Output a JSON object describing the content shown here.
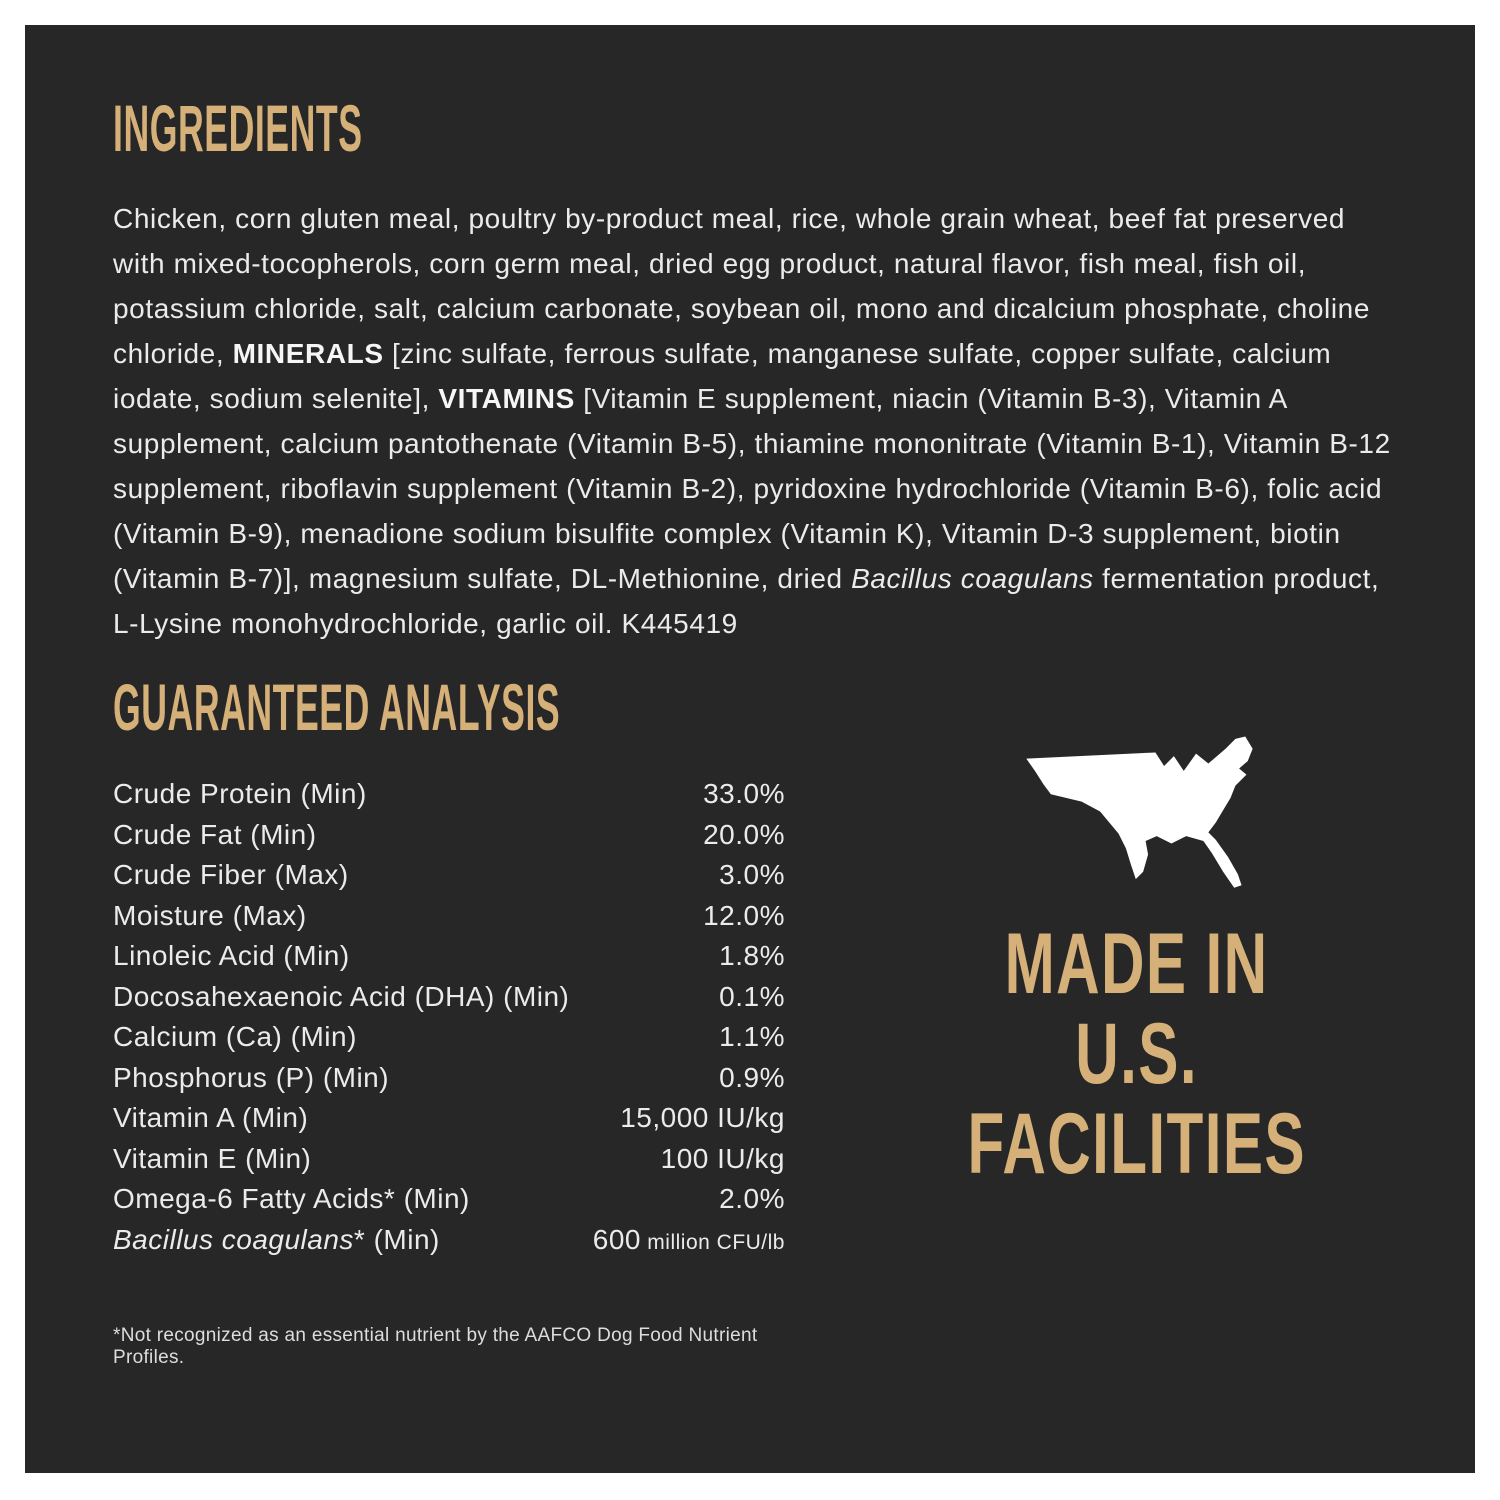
{
  "page": {
    "colors": {
      "background": "#ffffff",
      "panel": "#272727",
      "gold": "#d5b078",
      "body_text": "#ebebeb",
      "map": "#ffffff"
    }
  },
  "ingredients": {
    "heading": "INGREDIENTS",
    "segments": [
      {
        "t": "Chicken, corn gluten meal, poultry by-product meal, rice, whole grain wheat, beef fat preserved with mixed-tocopherols, corn germ meal, dried egg product, natural flavor, fish meal, fish oil, potassium chloride, salt, calcium carbonate, soybean oil, mono and dicalcium phosphate, choline chloride, "
      },
      {
        "t": "MINERALS",
        "b": 1
      },
      {
        "t": " [zinc sulfate, ferrous sulfate, manganese sulfate, copper sulfate, calcium iodate, sodium selenite], "
      },
      {
        "t": "VITAMINS",
        "b": 1
      },
      {
        "t": " [Vitamin E supplement, niacin (Vitamin B-3), Vitamin A supplement, calcium pantothenate (Vitamin B-5), thiamine mononitrate (Vitamin B-1), Vitamin B-12 supplement, riboflavin supplement (Vitamin B-2), pyridoxine hydrochloride (Vitamin B-6), folic acid (Vitamin B-9), menadione sodium bisulfite complex (Vitamin K), Vitamin D-3 supplement, biotin (Vitamin B-7)], magnesium sulfate, DL-Methionine, dried "
      },
      {
        "t": "Bacillus coagulans",
        "i": 1
      },
      {
        "t": " fermentation product, L-Lysine monohydrochloride, garlic oil. K445419"
      }
    ]
  },
  "analysis": {
    "heading": "GUARANTEED ANALYSIS",
    "rows": [
      {
        "label": [
          {
            "t": "Crude Protein (Min)"
          }
        ],
        "value": [
          {
            "t": "33.0%"
          }
        ]
      },
      {
        "label": [
          {
            "t": "Crude Fat (Min)"
          }
        ],
        "value": [
          {
            "t": "20.0%"
          }
        ]
      },
      {
        "label": [
          {
            "t": "Crude Fiber (Max)"
          }
        ],
        "value": [
          {
            "t": "3.0%"
          }
        ]
      },
      {
        "label": [
          {
            "t": "Moisture (Max)"
          }
        ],
        "value": [
          {
            "t": "12.0%"
          }
        ]
      },
      {
        "label": [
          {
            "t": "Linoleic Acid (Min)"
          }
        ],
        "value": [
          {
            "t": "1.8%"
          }
        ]
      },
      {
        "label": [
          {
            "t": "Docosahexaenoic Acid (DHA) (Min)"
          }
        ],
        "value": [
          {
            "t": "0.1%"
          }
        ]
      },
      {
        "label": [
          {
            "t": "Calcium (Ca) (Min)"
          }
        ],
        "value": [
          {
            "t": "1.1%"
          }
        ]
      },
      {
        "label": [
          {
            "t": "Phosphorus (P) (Min)"
          }
        ],
        "value": [
          {
            "t": "0.9%"
          }
        ]
      },
      {
        "label": [
          {
            "t": "Vitamin A (Min)"
          }
        ],
        "value": [
          {
            "t": "15,000 IU/kg"
          }
        ]
      },
      {
        "label": [
          {
            "t": "Vitamin E (Min)"
          }
        ],
        "value": [
          {
            "t": "100 IU/kg"
          }
        ]
      },
      {
        "label": [
          {
            "t": "Omega-6 Fatty Acids* (Min)"
          }
        ],
        "value": [
          {
            "t": "2.0%"
          }
        ]
      },
      {
        "label": [
          {
            "t": "Bacillus coagulans",
            "i": 1
          },
          {
            "t": "* (Min)"
          }
        ],
        "value": [
          {
            "t": "600"
          },
          {
            "t": " million CFU/lb",
            "sm": 1
          }
        ]
      }
    ],
    "footnote": "*Not recognized as an essential nutrient by the AAFCO Dog Food Nutrient Profiles."
  },
  "made_in": {
    "lines": [
      "MADE IN",
      "U.S.",
      "FACILITIES"
    ],
    "icon": "usa-map-icon"
  }
}
